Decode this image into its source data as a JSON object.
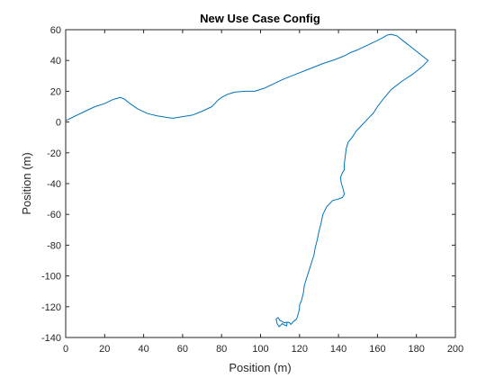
{
  "chart_data": {
    "type": "line",
    "title": "New Use Case Config",
    "xlabel": "Position (m)",
    "ylabel": "Position (m)",
    "xlim": [
      0,
      200
    ],
    "ylim": [
      -140,
      60
    ],
    "xticks": [
      0,
      20,
      40,
      60,
      80,
      100,
      120,
      140,
      160,
      180,
      200
    ],
    "yticks": [
      -140,
      -120,
      -100,
      -80,
      -60,
      -40,
      -20,
      0,
      20,
      40,
      60
    ],
    "xtick_labels": [
      "0",
      "20",
      "40",
      "60",
      "80",
      "100",
      "120",
      "140",
      "160",
      "180",
      "200"
    ],
    "ytick_labels": [
      "-140",
      "-120",
      "-100",
      "-80",
      "-60",
      "-40",
      "-20",
      "0",
      "20",
      "40",
      "60"
    ],
    "grid": false,
    "colors": {
      "line": "#0072BD",
      "axes": "#262626",
      "background": "#ffffff"
    },
    "series": [
      {
        "x": [
          0,
          1,
          5,
          10,
          15,
          20,
          24,
          28,
          30,
          33,
          37,
          42,
          47,
          52,
          55,
          60,
          65,
          70,
          75,
          78,
          80,
          83,
          87,
          92,
          97,
          102,
          107,
          112,
          118,
          125,
          132,
          138,
          143,
          146,
          150,
          155,
          160,
          163,
          165,
          167,
          170,
          174,
          178,
          182,
          186,
          183,
          178,
          172,
          167,
          163,
          160,
          158,
          155,
          152,
          149,
          147,
          145,
          144,
          143.5,
          143,
          143,
          142,
          141,
          141.5,
          142.5,
          143,
          142,
          140,
          137,
          134,
          132,
          131,
          130,
          129,
          128,
          127.5,
          126.5,
          125.5,
          124.5,
          123.5,
          122.5,
          122,
          121,
          120,
          120,
          119.5,
          118.5,
          117.5,
          116.5,
          116,
          115.5,
          115,
          114,
          113.5,
          113.5,
          112.5,
          111,
          110,
          109.5,
          108.5,
          108,
          109,
          110,
          111,
          111.5,
          112,
          113.5
        ],
        "y": [
          1,
          1.5,
          4,
          7,
          10,
          12,
          14.5,
          16,
          15,
          12,
          8.5,
          5.5,
          4,
          3,
          2.5,
          3.5,
          4.5,
          7,
          10,
          14,
          16,
          18,
          19.5,
          20,
          20,
          22,
          25,
          28,
          31,
          34.5,
          38,
          40.5,
          43,
          45,
          47,
          50,
          53,
          55,
          56.5,
          57,
          56,
          52,
          48,
          44,
          40,
          36,
          31,
          26,
          21,
          15,
          10,
          6,
          2,
          -2,
          -6,
          -10,
          -13,
          -17,
          -22,
          -27,
          -31,
          -33,
          -36,
          -40,
          -44,
          -47,
          -49,
          -50,
          -51,
          -55,
          -60,
          -66,
          -71,
          -77,
          -82,
          -86,
          -90,
          -94,
          -98,
          -102,
          -106,
          -111,
          -116,
          -119,
          -121,
          -124,
          -128,
          -129,
          -130,
          -131,
          -131.5,
          -130.5,
          -130,
          -130.5,
          -132.5,
          -132,
          -131,
          -132.5,
          -133,
          -131,
          -128,
          -127,
          -129,
          -129.5,
          -130,
          -130.5,
          -130
        ]
      }
    ]
  }
}
